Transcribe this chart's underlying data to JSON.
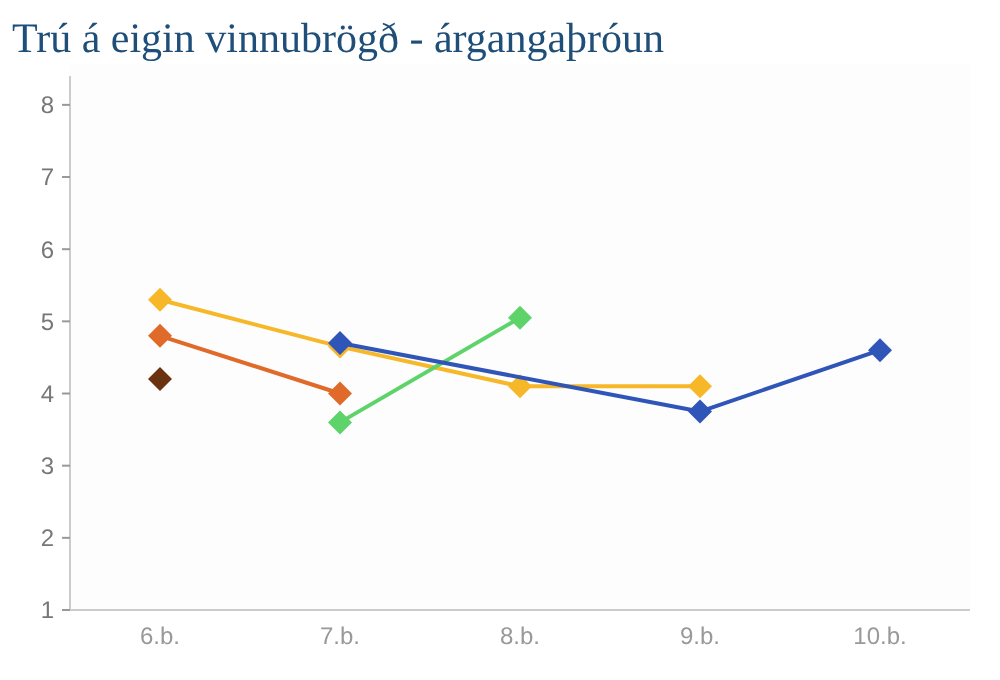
{
  "chart_data": {
    "type": "line",
    "title": "Trú á eigin vinnubrögð - árgangaþróun",
    "categories": [
      "6.b.",
      "7.b.",
      "8.b.",
      "9.b.",
      "10.b."
    ],
    "ylim": [
      1,
      8.4
    ],
    "yticks": [
      1,
      2,
      3,
      4,
      5,
      6,
      7,
      8
    ],
    "marker": "diamond",
    "grid": false,
    "series": [
      {
        "color": "#6b3210",
        "values": [
          4.2,
          null,
          null,
          null,
          null
        ]
      },
      {
        "color": "#e06a2a",
        "values": [
          4.8,
          4.0,
          null,
          null,
          null
        ]
      },
      {
        "color": "#f6b728",
        "values": [
          5.3,
          4.65,
          4.1,
          4.1,
          null
        ]
      },
      {
        "color": "#5dd36a",
        "values": [
          null,
          3.6,
          5.05,
          null,
          null
        ]
      },
      {
        "color": "#2f55b8",
        "x": [
          "7.b.",
          "9.b.",
          "10.b."
        ],
        "values": [
          4.7,
          3.75,
          4.6
        ]
      }
    ]
  }
}
